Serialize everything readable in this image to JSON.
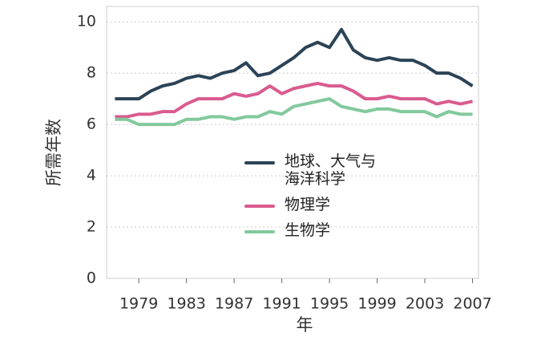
{
  "chart_data": {
    "type": "line",
    "x_label": "年",
    "y_label": "所需年数",
    "x": [
      1977,
      1978,
      1979,
      1980,
      1981,
      1982,
      1983,
      1984,
      1985,
      1986,
      1987,
      1988,
      1989,
      1990,
      1991,
      1992,
      1993,
      1994,
      1995,
      1996,
      1997,
      1998,
      1999,
      2000,
      2001,
      2002,
      2003,
      2004,
      2005,
      2006,
      2007
    ],
    "series": [
      {
        "name": "地球、大气与\n海洋科学",
        "color": "#2b4356",
        "values": [
          7.0,
          7.0,
          7.0,
          7.3,
          7.5,
          7.6,
          7.8,
          7.9,
          7.8,
          8.0,
          8.1,
          8.4,
          7.9,
          8.0,
          8.3,
          8.6,
          9.0,
          9.2,
          9.0,
          9.7,
          8.9,
          8.6,
          8.5,
          8.6,
          8.5,
          8.5,
          8.3,
          8.0,
          8.0,
          7.8,
          7.5
        ]
      },
      {
        "name": "物理学",
        "color": "#d95b8f",
        "values": [
          6.3,
          6.3,
          6.4,
          6.4,
          6.5,
          6.5,
          6.8,
          7.0,
          7.0,
          7.0,
          7.2,
          7.1,
          7.2,
          7.5,
          7.2,
          7.4,
          7.5,
          7.6,
          7.5,
          7.5,
          7.3,
          7.0,
          7.0,
          7.1,
          7.0,
          7.0,
          7.0,
          6.8,
          6.9,
          6.8,
          6.9
        ]
      },
      {
        "name": "生物学",
        "color": "#82c99c",
        "values": [
          6.2,
          6.2,
          6.0,
          6.0,
          6.0,
          6.0,
          6.2,
          6.2,
          6.3,
          6.3,
          6.2,
          6.3,
          6.3,
          6.5,
          6.4,
          6.7,
          6.8,
          6.9,
          7.0,
          6.7,
          6.6,
          6.5,
          6.6,
          6.6,
          6.5,
          6.5,
          6.5,
          6.3,
          6.5,
          6.4,
          6.4
        ]
      }
    ],
    "xlim": [
      1976.3,
      2007.5
    ],
    "xticks": [
      1979,
      1983,
      1987,
      1991,
      1995,
      1999,
      2003,
      2007
    ],
    "ylim": [
      0,
      10.6
    ],
    "yticks": [
      0,
      2,
      4,
      6,
      8,
      10
    ],
    "grid": true
  }
}
